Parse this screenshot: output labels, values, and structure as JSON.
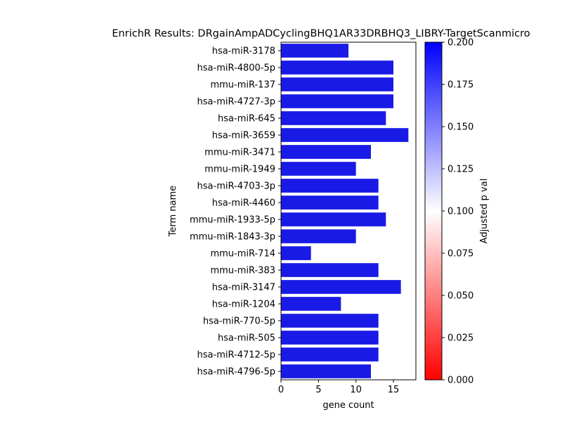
{
  "chart_data": {
    "type": "bar",
    "orientation": "horizontal",
    "title": "EnrichR Results: DRgainAmpADCyclingBHQ1AR33DRBHQ3_LIBRY-TargetScanmicro",
    "xlabel": "gene count",
    "ylabel": "Term name",
    "xlim": [
      0,
      18
    ],
    "x_ticks": [
      0,
      5,
      10,
      15
    ],
    "categories": [
      "hsa-miR-3178",
      "hsa-miR-4800-5p",
      "mmu-miR-137",
      "hsa-miR-4727-3p",
      "hsa-miR-645",
      "hsa-miR-3659",
      "mmu-miR-3471",
      "mmu-miR-1949",
      "hsa-miR-4703-3p",
      "hsa-miR-4460",
      "mmu-miR-1933-5p",
      "mmu-miR-1843-3p",
      "mmu-miR-714",
      "mmu-miR-383",
      "hsa-miR-3147",
      "hsa-miR-1204",
      "hsa-miR-770-5p",
      "hsa-miR-505",
      "hsa-miR-4712-5p",
      "hsa-miR-4796-5p"
    ],
    "values": [
      9,
      15,
      15,
      15,
      14,
      17,
      12,
      10,
      13,
      13,
      14,
      10,
      4,
      13,
      16,
      8,
      13,
      13,
      13,
      12
    ],
    "bar_color": "#1a1ae6",
    "grid": false,
    "colorbar": {
      "label": "Adjusted p val",
      "range": [
        0,
        0.2
      ],
      "ticks": [
        "0.000",
        "0.025",
        "0.050",
        "0.075",
        "0.100",
        "0.125",
        "0.150",
        "0.175",
        "0.200"
      ],
      "colors": [
        "#ff0000",
        "#ffffff",
        "#0000ff"
      ]
    }
  }
}
